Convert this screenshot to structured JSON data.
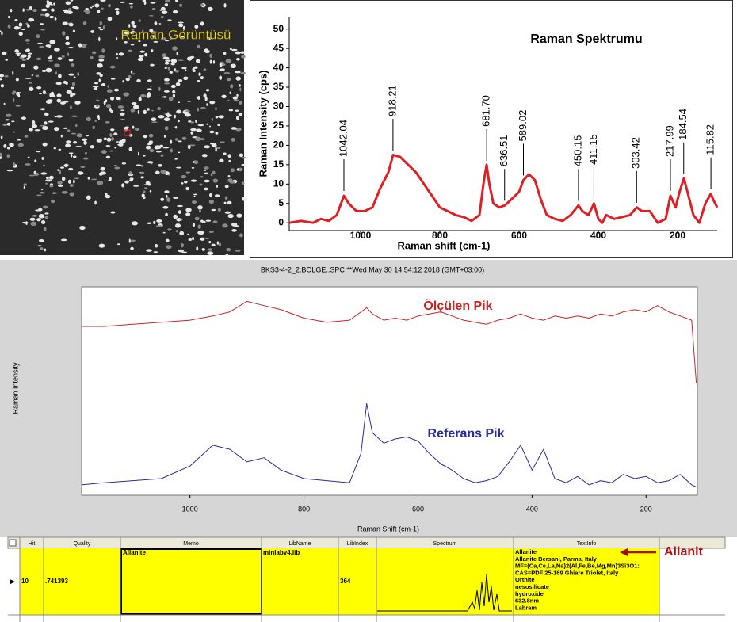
{
  "image": {
    "label": "Raman Görüntüsü"
  },
  "chart_data": [
    {
      "type": "line",
      "title": "Raman Spektrumu",
      "xlabel": "Raman shift (cm-1)",
      "ylabel": "Raman Intensity (cps)",
      "xlim": [
        1180,
        100
      ],
      "ylim": [
        -2,
        53
      ],
      "xticks": [
        1000,
        800,
        600,
        400,
        200
      ],
      "yticks": [
        0,
        5,
        10,
        15,
        20,
        25,
        30,
        35,
        40,
        45,
        50
      ],
      "x": [
        1180,
        1150,
        1120,
        1100,
        1080,
        1060,
        1042,
        1030,
        1010,
        990,
        970,
        950,
        940,
        930,
        918,
        900,
        880,
        860,
        840,
        820,
        800,
        780,
        760,
        740,
        720,
        700,
        690,
        682,
        675,
        665,
        650,
        636,
        620,
        600,
        589,
        575,
        560,
        545,
        530,
        510,
        490,
        470,
        450,
        440,
        425,
        411,
        400,
        390,
        380,
        360,
        340,
        320,
        303,
        290,
        270,
        250,
        230,
        218,
        205,
        195,
        184,
        175,
        160,
        145,
        130,
        116,
        110,
        100
      ],
      "series": [
        {
          "color": "#dd1f26",
          "values": [
            0,
            0.5,
            0,
            1,
            0.5,
            2,
            7,
            5,
            3,
            3,
            4,
            9,
            11,
            13,
            17.5,
            17,
            15,
            13,
            10,
            7,
            4,
            3,
            2,
            1.5,
            0.5,
            2,
            10,
            15,
            10,
            5,
            4,
            4.5,
            6,
            8,
            11,
            12.5,
            11,
            6,
            2,
            1,
            0.5,
            2,
            4.5,
            3,
            2,
            5,
            1,
            0,
            2,
            1,
            1.5,
            2,
            4,
            3,
            3,
            0,
            1,
            7,
            4,
            8,
            11.5,
            8,
            2,
            0,
            5,
            7.5,
            6,
            4
          ]
        }
      ],
      "annotations": [
        {
          "x": 1042.04,
          "label": "1042.04"
        },
        {
          "x": 918.21,
          "label": "918.21"
        },
        {
          "x": 681.7,
          "label": "681.70"
        },
        {
          "x": 636.51,
          "label": "636.51"
        },
        {
          "x": 589.02,
          "label": "589.02"
        },
        {
          "x": 450.15,
          "label": "450.15"
        },
        {
          "x": 411.15,
          "label": "411.15"
        },
        {
          "x": 303.42,
          "label": "303.42"
        },
        {
          "x": 217.99,
          "label": "217.99"
        },
        {
          "x": 184.54,
          "label": "184.54"
        },
        {
          "x": 115.82,
          "label": "115.82"
        }
      ]
    },
    {
      "type": "line",
      "title": "BKS3-4-2_2.BOLGE..SPC  **Wed May 30 14:54:12 2018 (GMT+03:00)",
      "xlabel": "Raman Shift (cm-1)",
      "ylabel": "Raman Intensity",
      "xlim": [
        1190,
        110
      ],
      "ylim": [
        0,
        100
      ],
      "xticks": [
        1000,
        800,
        600,
        400,
        200
      ],
      "x": [
        1190,
        1150,
        1100,
        1050,
        1000,
        960,
        930,
        900,
        870,
        840,
        800,
        760,
        720,
        700,
        690,
        680,
        660,
        640,
        620,
        600,
        580,
        560,
        540,
        520,
        500,
        480,
        460,
        440,
        420,
        400,
        380,
        360,
        340,
        320,
        300,
        280,
        260,
        240,
        220,
        200,
        180,
        160,
        140,
        120,
        112
      ],
      "series": [
        {
          "name": "Ölçülen Pik",
          "color": "#cc2222",
          "values": [
            81,
            81,
            82,
            83,
            84,
            86,
            88,
            93,
            91,
            89,
            85,
            83,
            84,
            88,
            90,
            87,
            84,
            85,
            84,
            86,
            87,
            88,
            86,
            84,
            83,
            82,
            84,
            85,
            87,
            85,
            84,
            86,
            85,
            86,
            85,
            87,
            86,
            88,
            89,
            88,
            91,
            88,
            86,
            84,
            54
          ]
        },
        {
          "name": "Referans Pik",
          "color": "#2a2a9a",
          "values": [
            5,
            6,
            7,
            8,
            14,
            24,
            22,
            16,
            18,
            12,
            8,
            7,
            6,
            20,
            44,
            30,
            25,
            27,
            28,
            26,
            20,
            15,
            12,
            8,
            6,
            7,
            9,
            16,
            24,
            12,
            22,
            8,
            6,
            9,
            5,
            7,
            6,
            10,
            8,
            9,
            6,
            7,
            10,
            5,
            4
          ]
        }
      ]
    }
  ],
  "table": {
    "headers": [
      "Hit",
      "Quality",
      "Memo",
      "LibName",
      "LibIndex",
      "Spectrum",
      "TextInfo"
    ],
    "rows": [
      {
        "hit": "10",
        "quality": ".741393",
        "memo": "Allanite",
        "libname": "minlabv4.lib",
        "libindex": "364",
        "textinfo": [
          "Allanite",
          "Allanite  Bersani, Parma, Italy",
          "MF=(Ca,Ce,La,Na)2(Al,Fe,Be,Mg,Mn)3Si3O1:",
          " CAS=PDF 25-169  Ghiare Triolet, Italy",
          "Orthite",
          "nesosilicate",
          "hydroxide",
          "632.8nm",
          "Labram"
        ]
      }
    ]
  },
  "callout": "Allanit"
}
